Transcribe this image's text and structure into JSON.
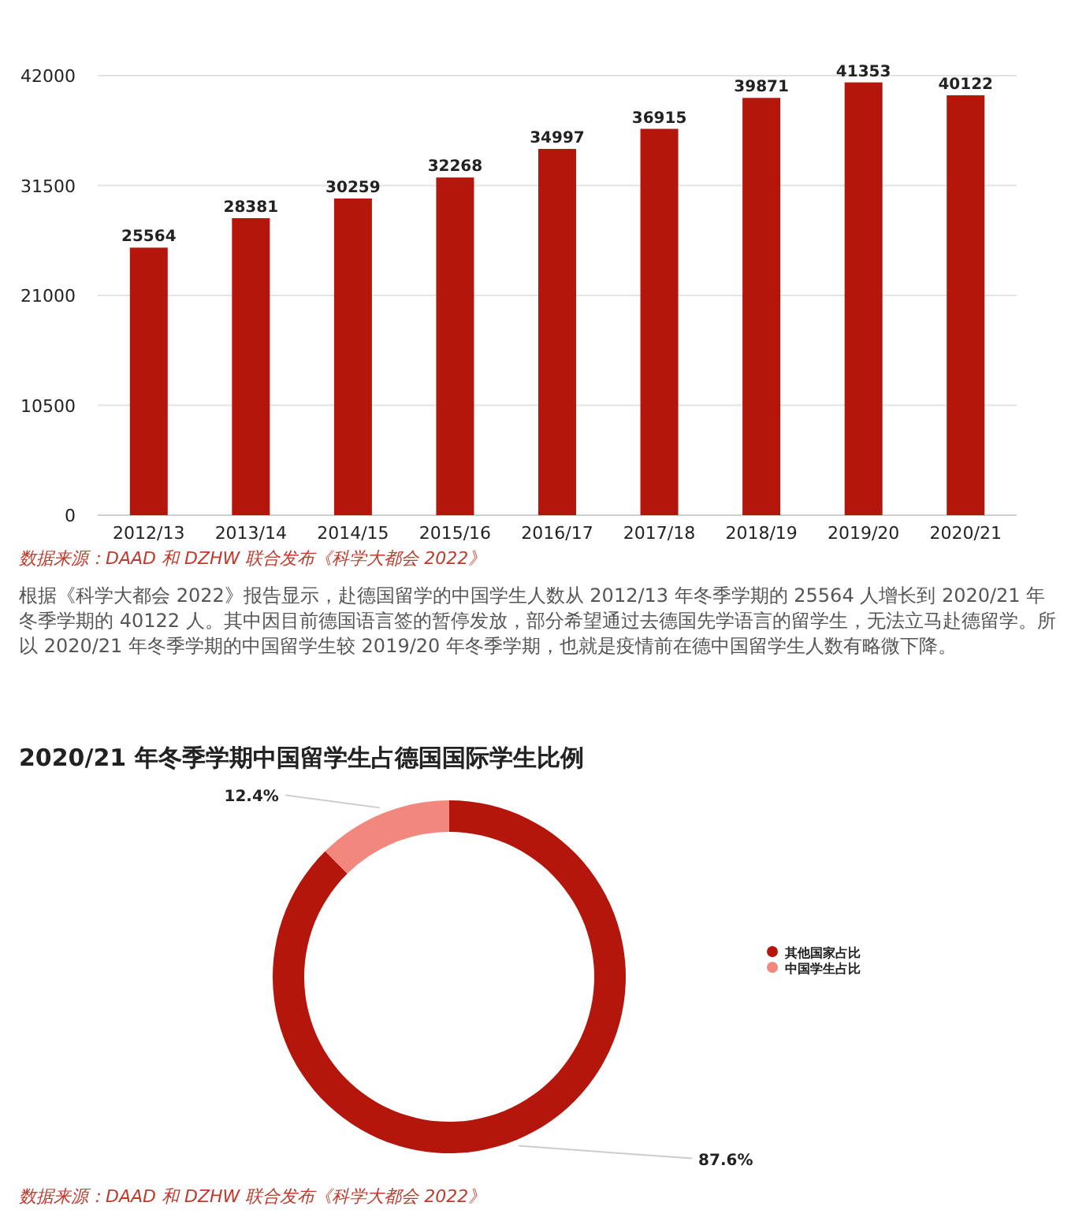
{
  "chart_data": [
    {
      "type": "bar",
      "categories": [
        "2012/13",
        "2013/14",
        "2014/15",
        "2015/16",
        "2016/17",
        "2017/18",
        "2018/19",
        "2019/20",
        "2020/21"
      ],
      "values": [
        25564,
        28381,
        30259,
        32268,
        34997,
        36915,
        39871,
        41353,
        40122
      ],
      "color": "#b5160b",
      "ylim": [
        0,
        42000
      ],
      "yticks": [
        0,
        10500,
        21000,
        31500,
        42000
      ],
      "grid": "y",
      "data_labels": true,
      "annotations": [
        "数据来源：DAAD 和 DZHW 联合发布《科学大都会 2022》",
        "根据《科学大都会 2022》报告显示，赴德国留学的中国学生人数从 2012/13 年冬季学期的 25564 人增长到 2020/21 年冬季学期的 40122 人。其中因目前德国语言签的暂停发放，部分希望通过去德国先学语言的留学生，无法立马赴德留学。所以 2020/21 年冬季学期的中国留学生较 2019/20 年冬季学期，也就是疫情前在德中国留学生人数有略微下降。"
      ]
    },
    {
      "type": "donut",
      "title": "2020/21 年冬季学期中国留学生占德国国际学生比例",
      "categories": [
        "其他国家占比",
        "中国学生占比"
      ],
      "values": [
        87.6,
        12.4
      ],
      "colors": [
        "#b5160b",
        "#f2877e"
      ],
      "value_labels": [
        "87.6%",
        "12.4%"
      ],
      "legend": "right",
      "annotations": [
        "数据来源：DAAD 和 DZHW 联合发布《科学大都会 2022》"
      ]
    }
  ]
}
